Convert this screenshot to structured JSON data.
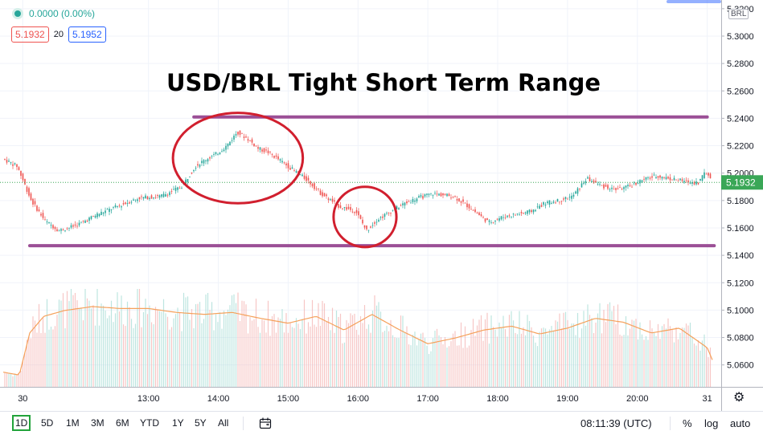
{
  "legend": {
    "change": "0.0000 (0.00%)",
    "sell_price": "5.1932",
    "spread": "20",
    "buy_price": "5.1952"
  },
  "currency_badge": "BRL",
  "last_price_label": "5.1932",
  "toolbar": {
    "ranges": [
      "1D",
      "5D",
      "1M",
      "3M",
      "6M",
      "YTD",
      "1Y",
      "5Y",
      "All"
    ],
    "active_range": "1D",
    "time": "08:11:39 (UTC)",
    "percent": "%",
    "log": "log",
    "auto": "auto"
  },
  "colors": {
    "up": "#26a69a",
    "down": "#ef5350",
    "range_line": "#9b4f96",
    "annotation_circle": "#d11f2e",
    "price_label_bg": "#3aa757",
    "volume_ma": "#f5a15b"
  },
  "chart_data": {
    "type": "line",
    "title": "USD/BRL Tight Short Term Range",
    "xlabel": "",
    "ylabel": "",
    "ylim": [
      5.044,
      5.324
    ],
    "y_ticks": [
      "5.3200",
      "5.3000",
      "5.2800",
      "5.2600",
      "5.2400",
      "5.2200",
      "5.2000",
      "5.1800",
      "5.1600",
      "5.1400",
      "5.1200",
      "5.1000",
      "5.0800",
      "5.0600"
    ],
    "x_ticks": [
      "30",
      "13:00",
      "14:00",
      "15:00",
      "16:00",
      "17:00",
      "18:00",
      "19:00",
      "20:00",
      "31"
    ],
    "x_tick_hours": [
      11.2,
      13.0,
      14.0,
      15.0,
      16.0,
      17.0,
      18.0,
      19.0,
      20.0,
      21.0
    ],
    "x_range_hours": [
      10.92,
      21.2
    ],
    "price_series": {
      "name": "USD/BRL",
      "x": [
        10.92,
        11.15,
        11.35,
        11.55,
        11.75,
        12.0,
        12.3,
        12.6,
        12.9,
        13.2,
        13.5,
        13.7,
        13.85,
        14.0,
        14.15,
        14.3,
        14.45,
        14.6,
        14.75,
        15.0,
        15.3,
        15.5,
        15.75,
        16.0,
        16.15,
        16.3,
        16.5,
        16.7,
        16.9,
        17.1,
        17.4,
        17.6,
        17.75,
        17.9,
        18.1,
        18.3,
        18.5,
        18.7,
        18.9,
        19.1,
        19.3,
        19.5,
        19.7,
        19.9,
        20.1,
        20.3,
        20.5,
        20.7,
        20.9,
        21.0,
        21.1,
        21.2
      ],
      "values": [
        5.211,
        5.205,
        5.18,
        5.165,
        5.158,
        5.162,
        5.17,
        5.176,
        5.182,
        5.183,
        5.19,
        5.205,
        5.21,
        5.214,
        5.22,
        5.23,
        5.225,
        5.218,
        5.215,
        5.206,
        5.195,
        5.185,
        5.176,
        5.172,
        5.158,
        5.166,
        5.172,
        5.178,
        5.182,
        5.185,
        5.183,
        5.176,
        5.17,
        5.164,
        5.168,
        5.17,
        5.172,
        5.178,
        5.18,
        5.183,
        5.196,
        5.191,
        5.188,
        5.19,
        5.195,
        5.198,
        5.196,
        5.194,
        5.193,
        5.201,
        5.195,
        5.193
      ]
    },
    "range_lines": [
      {
        "name": "upper",
        "value": 5.241,
        "x_from": 13.65,
        "x_to": 21.0
      },
      {
        "name": "lower",
        "value": 5.147,
        "x_from": 11.3,
        "x_to": 21.1
      }
    ],
    "annotation_circles": [
      {
        "x_center": 14.28,
        "y_center": 5.211,
        "x_radius_hours": 0.93,
        "y_radius": 0.033
      },
      {
        "x_center": 16.1,
        "y_center": 5.168,
        "x_radius_hours": 0.45,
        "y_radius": 0.022
      }
    ],
    "volume_ma": {
      "x": [
        10.92,
        11.15,
        11.3,
        11.5,
        11.8,
        12.2,
        12.6,
        13.0,
        13.4,
        13.8,
        14.2,
        14.6,
        15.0,
        15.4,
        15.8,
        16.2,
        16.6,
        17.0,
        17.4,
        17.8,
        18.2,
        18.6,
        19.0,
        19.4,
        19.8,
        20.2,
        20.6,
        21.0,
        21.2
      ],
      "values": [
        0.15,
        0.12,
        0.55,
        0.72,
        0.78,
        0.82,
        0.8,
        0.8,
        0.76,
        0.74,
        0.76,
        0.7,
        0.65,
        0.72,
        0.58,
        0.74,
        0.58,
        0.44,
        0.5,
        0.58,
        0.62,
        0.54,
        0.6,
        0.7,
        0.66,
        0.55,
        0.6,
        0.4,
        0.06
      ]
    }
  }
}
